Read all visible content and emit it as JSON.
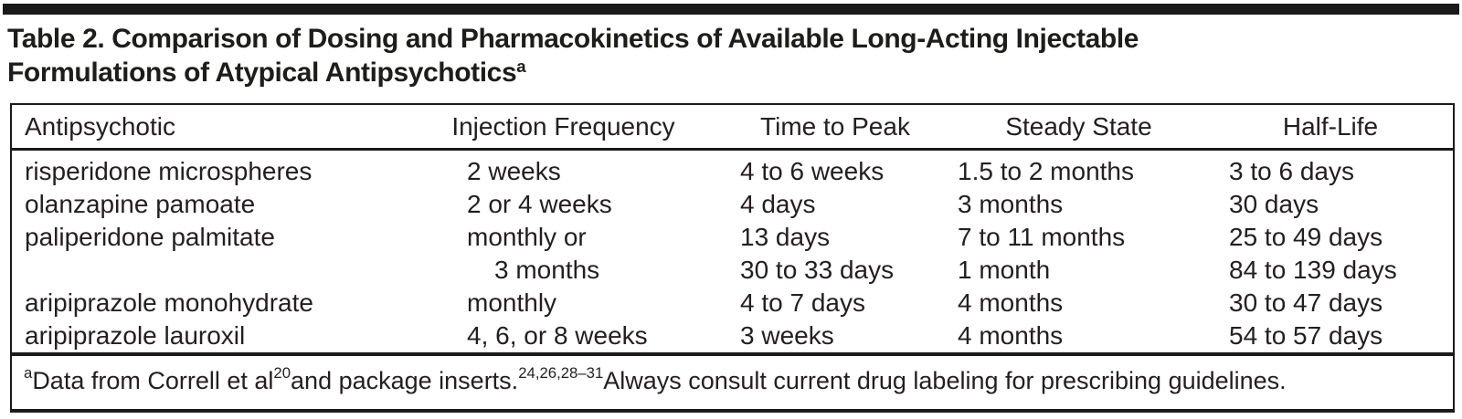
{
  "page": {
    "background": "#ffffff",
    "text_color": "#231f20",
    "rule_color": "#1a1a1a"
  },
  "title": {
    "line1": "Table 2. Comparison of Dosing and Pharmacokinetics of Available Long-Acting Injectable",
    "line2": "Formulations of Atypical Antipsychotics",
    "superscript": "a"
  },
  "table": {
    "columns": [
      {
        "key": "drug",
        "label": "Antipsychotic"
      },
      {
        "key": "frequency",
        "label": "Injection Frequency"
      },
      {
        "key": "peak",
        "label": "Time to Peak"
      },
      {
        "key": "steady",
        "label": "Steady State"
      },
      {
        "key": "half_life",
        "label": "Half-Life"
      }
    ],
    "rows": [
      {
        "drug": [
          "risperidone microspheres"
        ],
        "frequency": [
          "2 weeks"
        ],
        "peak": [
          "4 to 6 weeks"
        ],
        "steady": [
          "1.5 to 2 months"
        ],
        "half_life": [
          "3 to 6 days"
        ]
      },
      {
        "drug": [
          "olanzapine pamoate"
        ],
        "frequency": [
          "2 or 4 weeks"
        ],
        "peak": [
          "4 days"
        ],
        "steady": [
          "3 months"
        ],
        "half_life": [
          "30 days"
        ]
      },
      {
        "drug": [
          "paliperidone palmitate"
        ],
        "frequency": [
          "monthly or",
          "3 months"
        ],
        "peak": [
          "13 days",
          "30 to 33 days"
        ],
        "steady": [
          "7 to 11 months",
          "1 month"
        ],
        "half_life": [
          "25 to 49 days",
          "84 to 139 days"
        ]
      },
      {
        "drug": [
          "aripiprazole monohydrate"
        ],
        "frequency": [
          "monthly"
        ],
        "peak": [
          "4 to 7 days"
        ],
        "steady": [
          "4 months"
        ],
        "half_life": [
          "30 to 47 days"
        ]
      },
      {
        "drug": [
          "aripiprazole lauroxil"
        ],
        "frequency": [
          "4, 6, or 8 weeks"
        ],
        "peak": [
          "3 weeks"
        ],
        "steady": [
          "4 months"
        ],
        "half_life": [
          "54 to 57 days"
        ]
      }
    ],
    "footnote": {
      "segments": [
        {
          "sup": "a"
        },
        {
          "text": "Data from Correll et al"
        },
        {
          "sup": "20"
        },
        {
          "text": " and package inserts."
        },
        {
          "sup": "24,26,28–31"
        },
        {
          "text": " Always consult current drug labeling for prescribing guidelines."
        }
      ]
    }
  }
}
